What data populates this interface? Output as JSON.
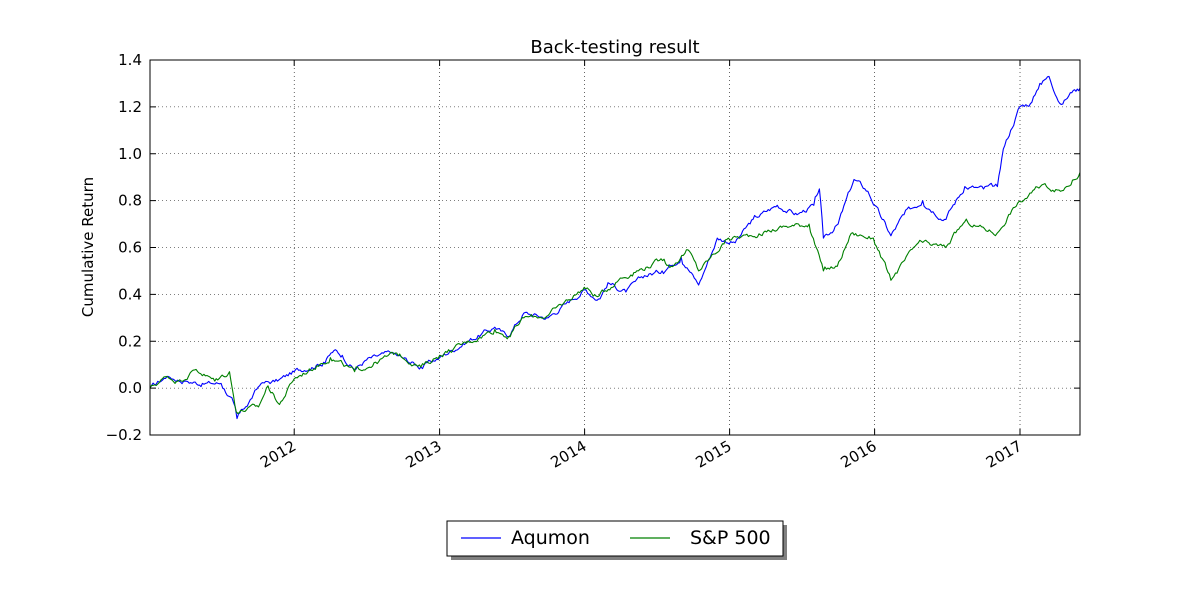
{
  "chart_data": {
    "type": "line",
    "title": "Back-testing result",
    "xlabel": "",
    "ylabel": "Cumulative Return",
    "xlim": [
      "2011-01-03",
      "2017-06-01"
    ],
    "ylim": [
      -0.2,
      1.4
    ],
    "y_ticks": [
      -0.2,
      0.0,
      0.2,
      0.4,
      0.6,
      0.8,
      1.0,
      1.2,
      1.4
    ],
    "y_tick_labels": [
      "−0.2",
      "0.0",
      "0.2",
      "0.4",
      "0.6",
      "0.8",
      "1.0",
      "1.2",
      "1.4"
    ],
    "x_ticks": [
      "2012-01-01",
      "2013-01-01",
      "2014-01-01",
      "2015-01-01",
      "2016-01-01",
      "2017-01-01"
    ],
    "x_tick_labels": [
      "2012",
      "2013",
      "2014",
      "2015",
      "2016",
      "2017"
    ],
    "grid": true,
    "legend_placement": "bottom-center, below the plot",
    "series": [
      {
        "name": "Aqumon",
        "color": "#0000ff",
        "points": [
          [
            "2011-01-03",
            0.0
          ],
          [
            "2011-02-15",
            0.05
          ],
          [
            "2011-04-01",
            0.03
          ],
          [
            "2011-05-15",
            0.02
          ],
          [
            "2011-07-01",
            0.02
          ],
          [
            "2011-08-01",
            -0.06
          ],
          [
            "2011-08-10",
            -0.13
          ],
          [
            "2011-09-01",
            -0.08
          ],
          [
            "2011-10-10",
            0.02
          ],
          [
            "2011-11-20",
            0.03
          ],
          [
            "2012-01-01",
            0.07
          ],
          [
            "2012-03-15",
            0.11
          ],
          [
            "2012-04-10",
            0.16
          ],
          [
            "2012-05-01",
            0.14
          ],
          [
            "2012-06-01",
            0.08
          ],
          [
            "2012-07-01",
            0.12
          ],
          [
            "2012-09-01",
            0.15
          ],
          [
            "2012-11-15",
            0.09
          ],
          [
            "2013-01-01",
            0.13
          ],
          [
            "2013-03-01",
            0.19
          ],
          [
            "2013-05-20",
            0.26
          ],
          [
            "2013-06-20",
            0.22
          ],
          [
            "2013-08-01",
            0.32
          ],
          [
            "2013-10-01",
            0.3
          ],
          [
            "2013-11-15",
            0.36
          ],
          [
            "2014-01-01",
            0.42
          ],
          [
            "2014-02-05",
            0.38
          ],
          [
            "2014-03-01",
            0.45
          ],
          [
            "2014-04-15",
            0.41
          ],
          [
            "2014-06-01",
            0.48
          ],
          [
            "2014-07-15",
            0.5
          ],
          [
            "2014-09-01",
            0.56
          ],
          [
            "2014-10-15",
            0.44
          ],
          [
            "2014-12-01",
            0.64
          ],
          [
            "2015-01-15",
            0.62
          ],
          [
            "2015-03-01",
            0.72
          ],
          [
            "2015-05-01",
            0.78
          ],
          [
            "2015-06-20",
            0.74
          ],
          [
            "2015-08-01",
            0.78
          ],
          [
            "2015-08-15",
            0.85
          ],
          [
            "2015-08-25",
            0.64
          ],
          [
            "2015-10-01",
            0.7
          ],
          [
            "2015-11-10",
            0.89
          ],
          [
            "2015-12-15",
            0.84
          ],
          [
            "2016-01-20",
            0.72
          ],
          [
            "2016-02-11",
            0.65
          ],
          [
            "2016-03-15",
            0.74
          ],
          [
            "2016-05-01",
            0.8
          ],
          [
            "2016-06-25",
            0.72
          ],
          [
            "2016-08-15",
            0.86
          ],
          [
            "2016-10-01",
            0.85
          ],
          [
            "2016-11-05",
            0.86
          ],
          [
            "2016-11-20",
            1.02
          ],
          [
            "2016-12-31",
            1.2
          ],
          [
            "2017-01-31",
            1.22
          ],
          [
            "2017-02-20",
            1.3
          ],
          [
            "2017-03-15",
            1.33
          ],
          [
            "2017-04-15",
            1.21
          ],
          [
            "2017-05-15",
            1.27
          ],
          [
            "2017-06-01",
            1.28
          ]
        ]
      },
      {
        "name": "S&P 500",
        "color": "#008000",
        "points": [
          [
            "2011-01-03",
            0.0
          ],
          [
            "2011-02-15",
            0.05
          ],
          [
            "2011-03-15",
            0.03
          ],
          [
            "2011-04-29",
            0.08
          ],
          [
            "2011-06-15",
            0.03
          ],
          [
            "2011-07-22",
            0.07
          ],
          [
            "2011-08-08",
            -0.1
          ],
          [
            "2011-10-03",
            -0.08
          ],
          [
            "2011-10-27",
            0.01
          ],
          [
            "2011-11-25",
            -0.07
          ],
          [
            "2012-01-01",
            0.04
          ],
          [
            "2012-04-01",
            0.13
          ],
          [
            "2012-06-01",
            0.07
          ],
          [
            "2012-09-15",
            0.15
          ],
          [
            "2012-11-15",
            0.09
          ],
          [
            "2013-01-01",
            0.14
          ],
          [
            "2013-05-20",
            0.25
          ],
          [
            "2013-06-24",
            0.22
          ],
          [
            "2013-08-01",
            0.3
          ],
          [
            "2013-10-01",
            0.31
          ],
          [
            "2013-12-31",
            0.43
          ],
          [
            "2014-02-03",
            0.39
          ],
          [
            "2014-04-01",
            0.47
          ],
          [
            "2014-07-20",
            0.55
          ],
          [
            "2014-08-07",
            0.52
          ],
          [
            "2014-09-18",
            0.59
          ],
          [
            "2014-10-15",
            0.5
          ],
          [
            "2014-12-29",
            0.64
          ],
          [
            "2015-02-25",
            0.65
          ],
          [
            "2015-05-20",
            0.69
          ],
          [
            "2015-07-20",
            0.7
          ],
          [
            "2015-08-25",
            0.5
          ],
          [
            "2015-09-29",
            0.52
          ],
          [
            "2015-11-03",
            0.66
          ],
          [
            "2015-12-29",
            0.64
          ],
          [
            "2016-02-11",
            0.46
          ],
          [
            "2016-04-20",
            0.62
          ],
          [
            "2016-06-27",
            0.6
          ],
          [
            "2016-08-15",
            0.71
          ],
          [
            "2016-11-04",
            0.66
          ],
          [
            "2016-12-15",
            0.77
          ],
          [
            "2017-03-01",
            0.87
          ],
          [
            "2017-04-13",
            0.84
          ],
          [
            "2017-06-01",
            0.92
          ]
        ]
      }
    ]
  }
}
